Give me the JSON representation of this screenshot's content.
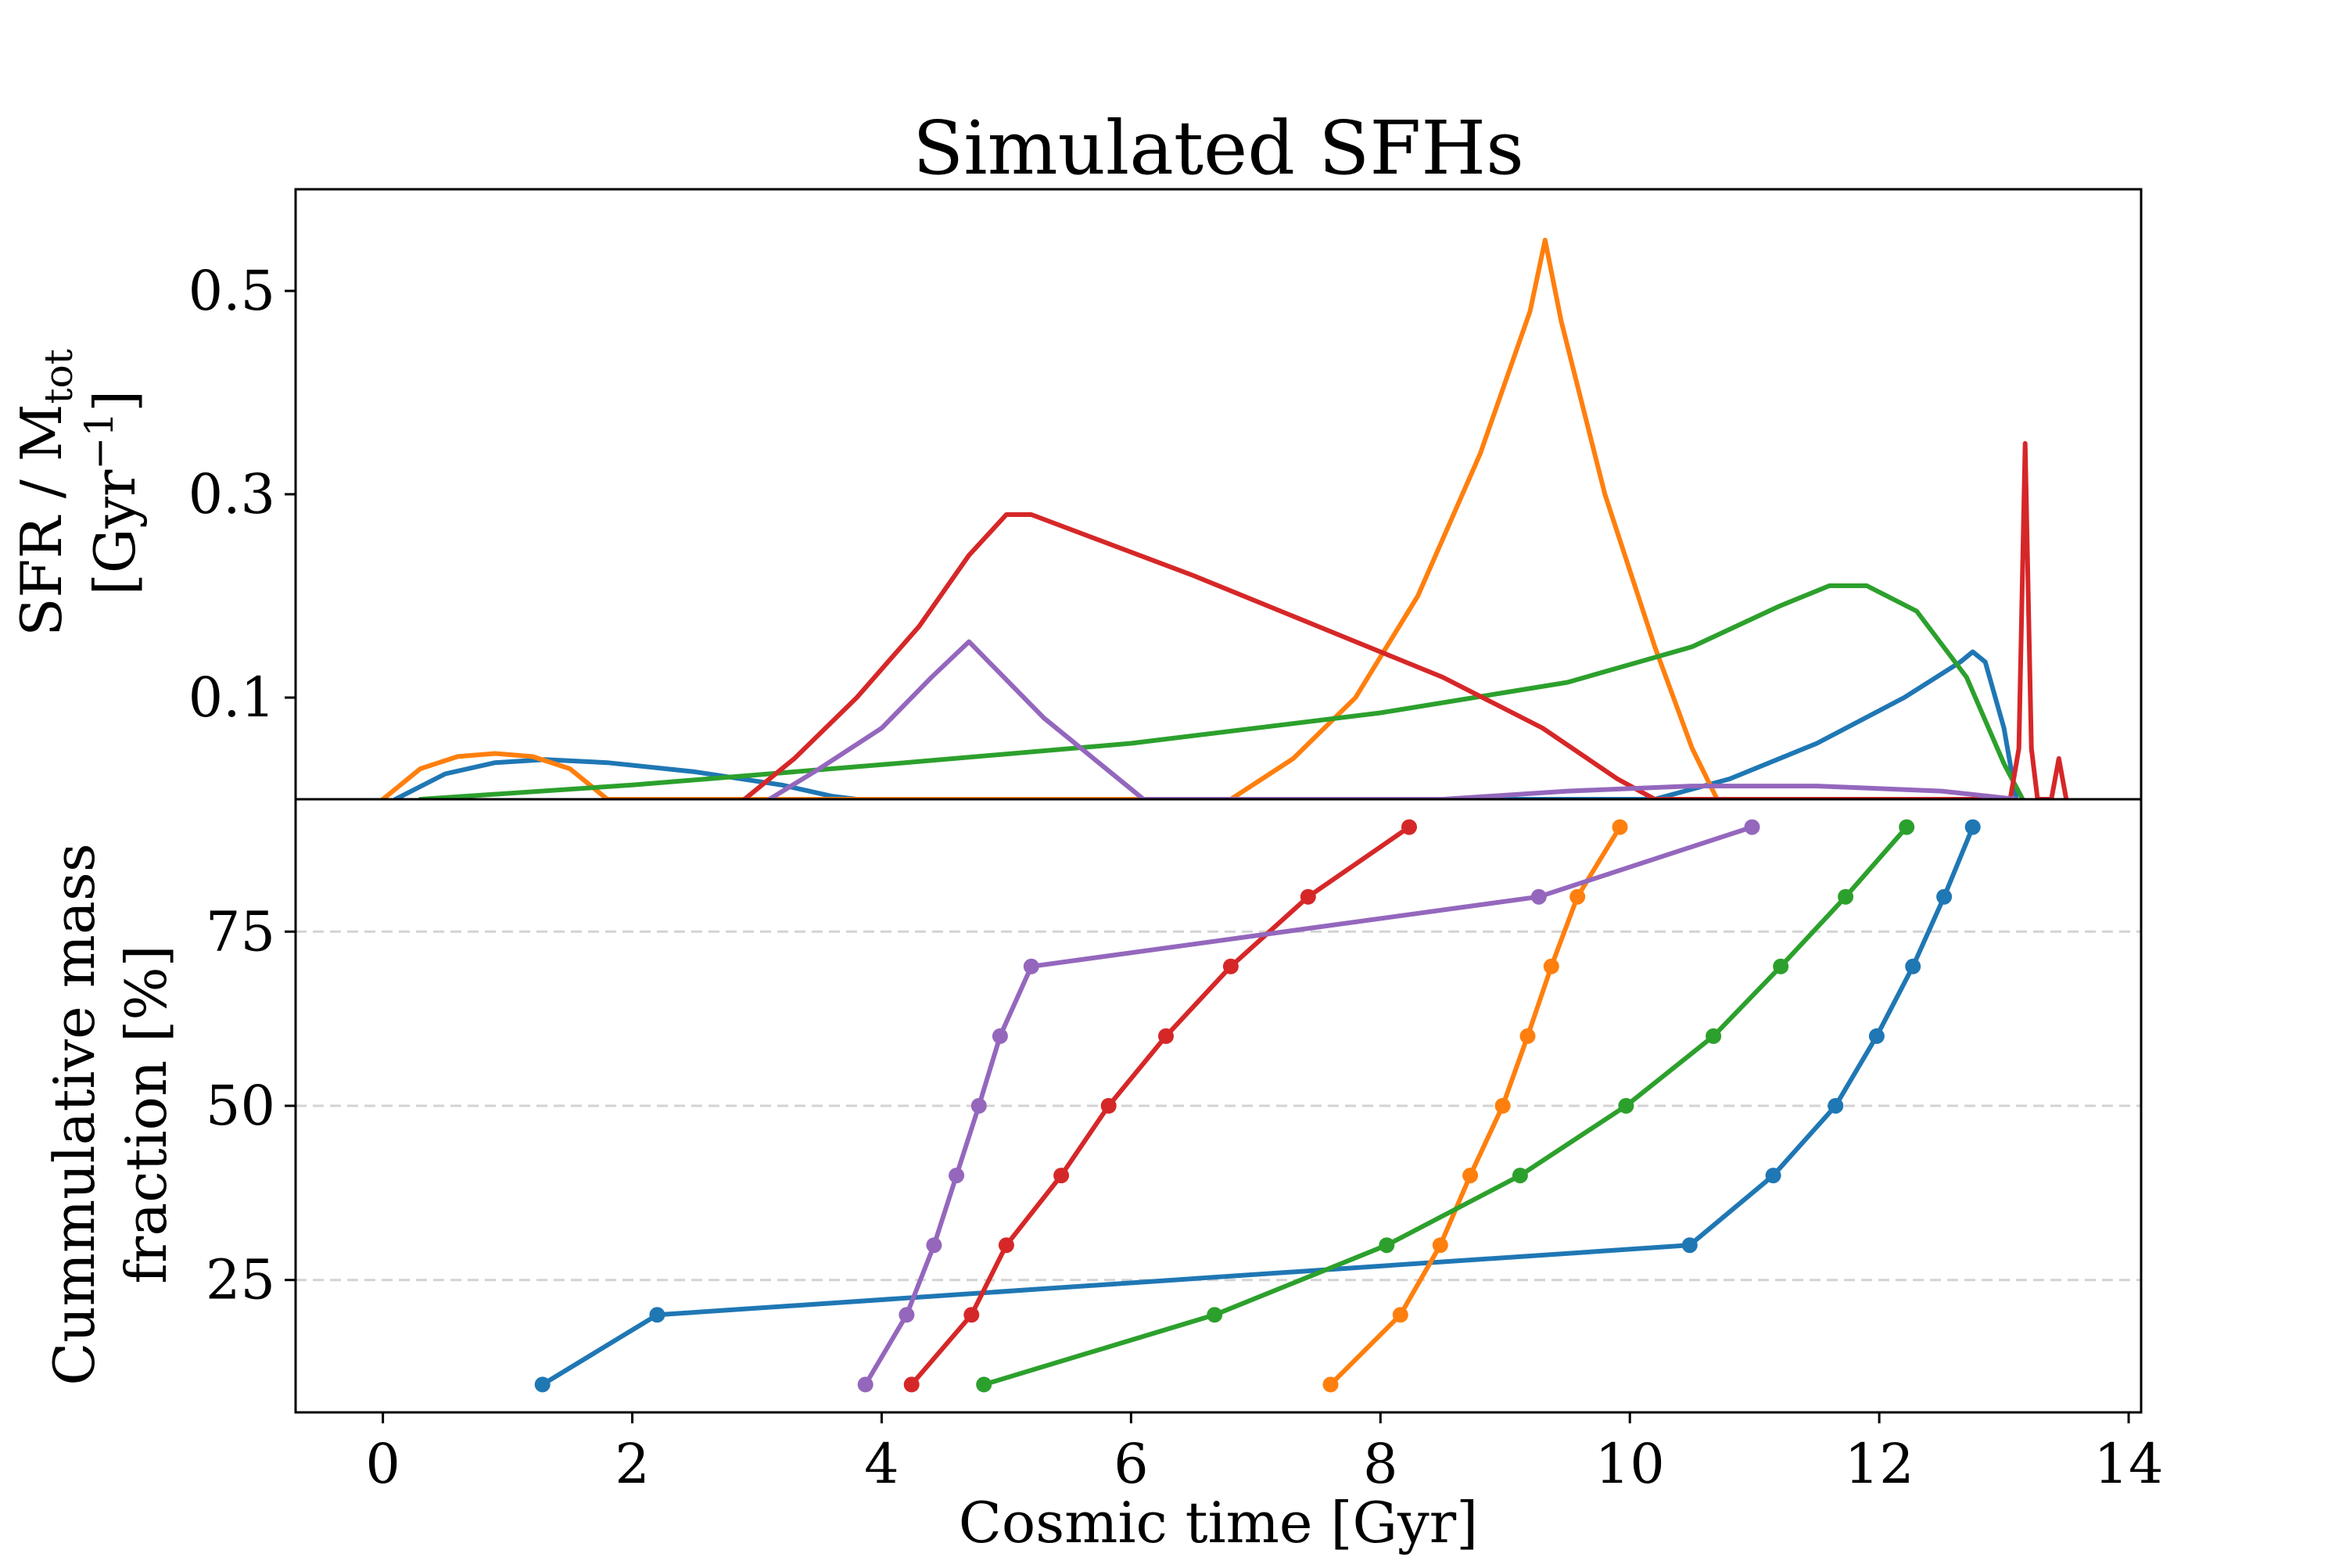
{
  "chart_data": [
    {
      "type": "line",
      "panel": "top",
      "title": "Simulated SFHs",
      "ylabel_main": "SFR / M",
      "ylabel_sub": "tot",
      "ylabel_unit_open": "[Gyr",
      "ylabel_unit_sup": "−1",
      "ylabel_unit_close": "]",
      "xlim": [
        -0.7,
        14.1
      ],
      "ylim": [
        0.0,
        0.6
      ],
      "ytick_labels": [
        "0.1",
        "0.3",
        "0.5"
      ],
      "ytick_values": [
        0.1,
        0.3,
        0.5
      ],
      "grid": false,
      "series": [
        {
          "color": "#1f77b4",
          "points": [
            [
              0.1,
              0.0
            ],
            [
              0.5,
              0.025
            ],
            [
              0.9,
              0.036
            ],
            [
              1.3,
              0.039
            ],
            [
              1.8,
              0.036
            ],
            [
              2.5,
              0.027
            ],
            [
              3.2,
              0.014
            ],
            [
              3.6,
              0.003
            ],
            [
              3.8,
              0.0
            ],
            [
              10.2,
              0.0
            ],
            [
              10.8,
              0.02
            ],
            [
              11.5,
              0.055
            ],
            [
              12.2,
              0.1
            ],
            [
              12.65,
              0.135
            ],
            [
              12.75,
              0.145
            ],
            [
              12.85,
              0.135
            ],
            [
              13.0,
              0.07
            ],
            [
              13.1,
              0.0
            ]
          ]
        },
        {
          "color": "#ff7f0e",
          "points": [
            [
              0.0,
              0.0
            ],
            [
              0.3,
              0.03
            ],
            [
              0.6,
              0.042
            ],
            [
              0.9,
              0.045
            ],
            [
              1.2,
              0.042
            ],
            [
              1.5,
              0.03
            ],
            [
              1.7,
              0.01
            ],
            [
              1.8,
              0.0
            ],
            [
              6.8,
              0.0
            ],
            [
              7.3,
              0.04
            ],
            [
              7.8,
              0.1
            ],
            [
              8.3,
              0.2
            ],
            [
              8.8,
              0.34
            ],
            [
              9.2,
              0.48
            ],
            [
              9.32,
              0.55
            ],
            [
              9.45,
              0.47
            ],
            [
              9.8,
              0.3
            ],
            [
              10.2,
              0.15
            ],
            [
              10.5,
              0.05
            ],
            [
              10.7,
              0.0
            ]
          ]
        },
        {
          "color": "#2ca02c",
          "points": [
            [
              0.3,
              0.0
            ],
            [
              2.0,
              0.014
            ],
            [
              4.0,
              0.034
            ],
            [
              6.0,
              0.055
            ],
            [
              8.0,
              0.085
            ],
            [
              9.5,
              0.115
            ],
            [
              10.5,
              0.15
            ],
            [
              11.2,
              0.19
            ],
            [
              11.6,
              0.21
            ],
            [
              11.9,
              0.21
            ],
            [
              12.3,
              0.185
            ],
            [
              12.7,
              0.12
            ],
            [
              13.0,
              0.035
            ],
            [
              13.15,
              0.0
            ]
          ]
        },
        {
          "color": "#d62728",
          "points": [
            [
              2.9,
              0.0
            ],
            [
              3.3,
              0.04
            ],
            [
              3.8,
              0.1
            ],
            [
              4.3,
              0.17
            ],
            [
              4.7,
              0.24
            ],
            [
              5.0,
              0.28
            ],
            [
              5.2,
              0.28
            ],
            [
              6.5,
              0.22
            ],
            [
              7.5,
              0.17
            ],
            [
              8.5,
              0.12
            ],
            [
              9.3,
              0.07
            ],
            [
              9.9,
              0.02
            ],
            [
              10.2,
              0.0
            ],
            [
              13.05,
              0.0
            ],
            [
              13.12,
              0.05
            ],
            [
              13.17,
              0.35
            ],
            [
              13.22,
              0.05
            ],
            [
              13.27,
              0.0
            ],
            [
              13.38,
              0.0
            ],
            [
              13.44,
              0.04
            ],
            [
              13.5,
              0.0
            ]
          ]
        },
        {
          "color": "#9467bd",
          "points": [
            [
              3.1,
              0.0
            ],
            [
              3.5,
              0.03
            ],
            [
              4.0,
              0.07
            ],
            [
              4.4,
              0.12
            ],
            [
              4.7,
              0.155
            ],
            [
              4.9,
              0.13
            ],
            [
              5.3,
              0.08
            ],
            [
              5.8,
              0.03
            ],
            [
              6.0,
              0.01
            ],
            [
              6.1,
              0.0
            ],
            [
              8.5,
              0.0
            ],
            [
              9.5,
              0.008
            ],
            [
              10.5,
              0.013
            ],
            [
              11.5,
              0.013
            ],
            [
              12.5,
              0.008
            ],
            [
              13.1,
              0.0
            ]
          ]
        }
      ]
    },
    {
      "type": "line",
      "panel": "bottom",
      "xlabel": "Cosmic time [Gyr]",
      "ylabel_line1": "Cummulative mass",
      "ylabel_line2": "fraction [%]",
      "xlim": [
        -0.7,
        14.1
      ],
      "ylim": [
        6,
        94
      ],
      "xtick_labels": [
        "0",
        "2",
        "4",
        "6",
        "8",
        "10",
        "12",
        "14"
      ],
      "xtick_values": [
        0,
        2,
        4,
        6,
        8,
        10,
        12,
        14
      ],
      "ytick_labels": [
        "25",
        "50",
        "75"
      ],
      "ytick_values": [
        25,
        50,
        75
      ],
      "grid": "horizontal dashed",
      "series": [
        {
          "color": "#1f77b4",
          "x": [
            1.28,
            2.2,
            10.48,
            11.15,
            11.65,
            11.98,
            12.27,
            12.52,
            12.75
          ],
          "y": [
            10,
            20,
            30,
            40,
            50,
            60,
            70,
            80,
            90
          ]
        },
        {
          "color": "#ff7f0e",
          "x": [
            7.6,
            8.16,
            8.48,
            8.72,
            8.98,
            9.18,
            9.37,
            9.58,
            9.92
          ],
          "y": [
            10,
            20,
            30,
            40,
            50,
            60,
            70,
            80,
            90
          ]
        },
        {
          "color": "#2ca02c",
          "x": [
            4.82,
            6.67,
            8.05,
            9.12,
            9.97,
            10.67,
            11.21,
            11.73,
            12.22
          ],
          "y": [
            10,
            20,
            30,
            40,
            50,
            60,
            70,
            80,
            90
          ]
        },
        {
          "color": "#d62728",
          "x": [
            4.24,
            4.72,
            5.0,
            5.44,
            5.82,
            6.28,
            6.8,
            7.42,
            8.23
          ],
          "y": [
            10,
            20,
            30,
            40,
            50,
            60,
            70,
            80,
            90
          ]
        },
        {
          "color": "#9467bd",
          "x": [
            3.87,
            4.2,
            4.42,
            4.6,
            4.78,
            4.95,
            5.2,
            9.27,
            10.98
          ],
          "y": [
            10,
            20,
            30,
            40,
            50,
            60,
            70,
            80,
            90
          ]
        }
      ]
    }
  ]
}
